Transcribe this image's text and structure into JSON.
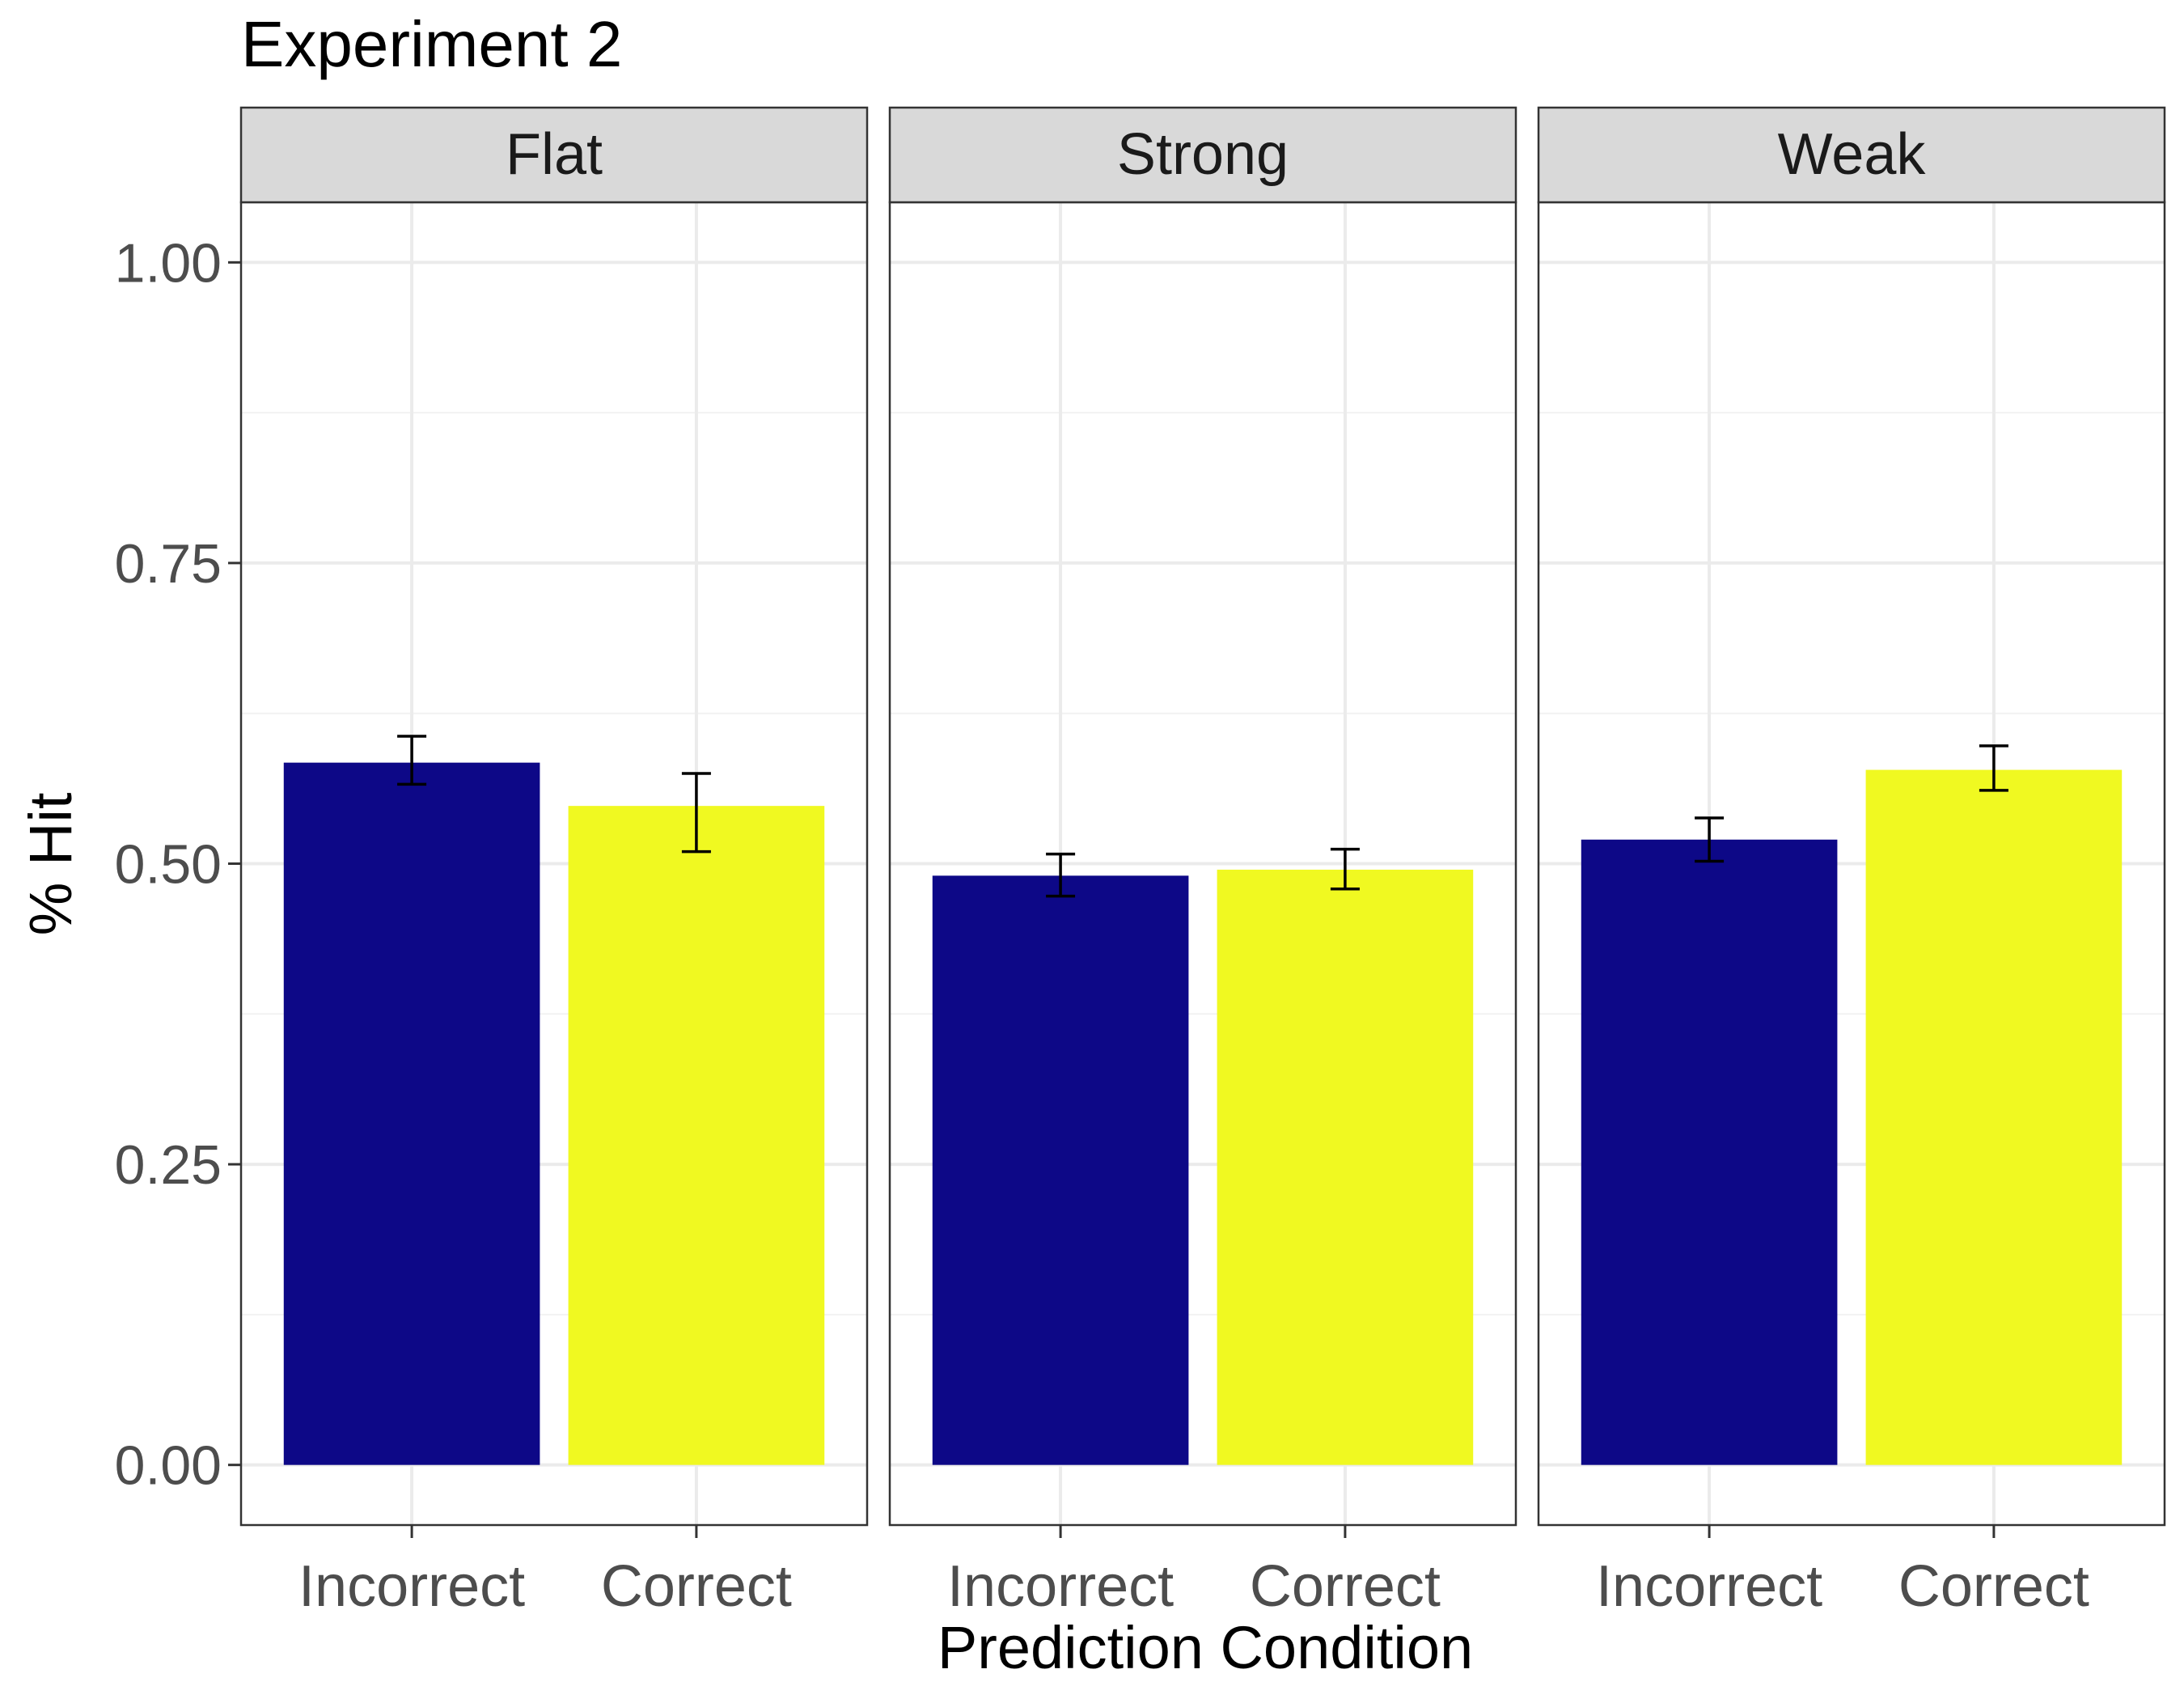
{
  "chart_data": {
    "type": "bar",
    "title": "Experiment 2",
    "xlabel": "Prediction Condition",
    "ylabel": "% Hit",
    "ylim": [
      -0.05,
      1.05
    ],
    "yticks": [
      0.0,
      0.25,
      0.5,
      0.75,
      1.0
    ],
    "ytick_labels": [
      "0.00",
      "0.25",
      "0.50",
      "0.75",
      "1.00"
    ],
    "categories": [
      "Incorrect",
      "Correct"
    ],
    "colors": {
      "Incorrect": "#0d0887",
      "Correct": "#f0f921"
    },
    "grid": true,
    "legend": "none",
    "facets": [
      {
        "label": "Flat",
        "values": [
          0.584,
          0.548
        ],
        "err_low": [
          0.566,
          0.51
        ],
        "err_high": [
          0.606,
          0.575
        ]
      },
      {
        "label": "Strong",
        "values": [
          0.49,
          0.495
        ],
        "err_low": [
          0.473,
          0.479
        ],
        "err_high": [
          0.508,
          0.512
        ]
      },
      {
        "label": "Weak",
        "values": [
          0.52,
          0.578
        ],
        "err_low": [
          0.502,
          0.561
        ],
        "err_high": [
          0.538,
          0.598
        ]
      }
    ]
  }
}
